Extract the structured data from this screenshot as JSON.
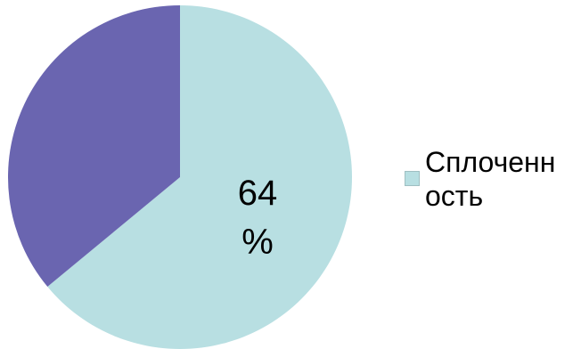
{
  "chart_data": {
    "type": "pie",
    "slices": [
      {
        "label": "Сплоченность",
        "value": 64,
        "color": "#b8dfe2"
      },
      {
        "label": "",
        "value": 36,
        "color": "#6a65b0"
      }
    ],
    "data_label_line1": "64",
    "data_label_line2": "%",
    "legend": {
      "placement": "right",
      "entries": [
        {
          "label": "Сплоченн ость",
          "color": "#b8dfe2"
        }
      ]
    }
  }
}
